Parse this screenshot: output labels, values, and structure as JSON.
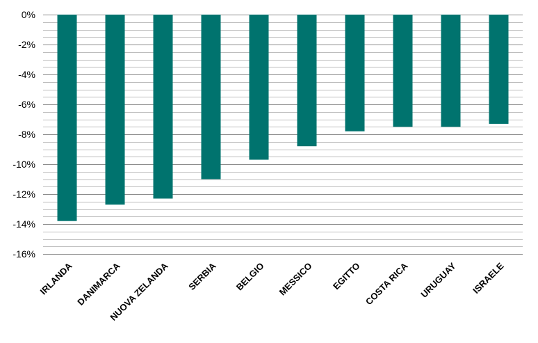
{
  "chart_data": {
    "type": "bar",
    "categories": [
      "IRLANDA",
      "DANIMARCA",
      "NUOVA ZELANDA",
      "SERBIA",
      "BELGIO",
      "MESSICO",
      "EGITTO",
      "COSTA RICA",
      "URUGUAY",
      "ISRAELE"
    ],
    "values": [
      -13.8,
      -12.7,
      -12.3,
      -11.0,
      -9.7,
      -8.8,
      -7.8,
      -7.5,
      -7.5,
      -7.3
    ],
    "ylim": [
      -16,
      0
    ],
    "y_ticks": [
      "0%",
      "-2%",
      "-4%",
      "-6%",
      "-8%",
      "-10%",
      "-12%",
      "-14%",
      "-16%"
    ],
    "grid": true,
    "bar_color": "#00736E"
  }
}
